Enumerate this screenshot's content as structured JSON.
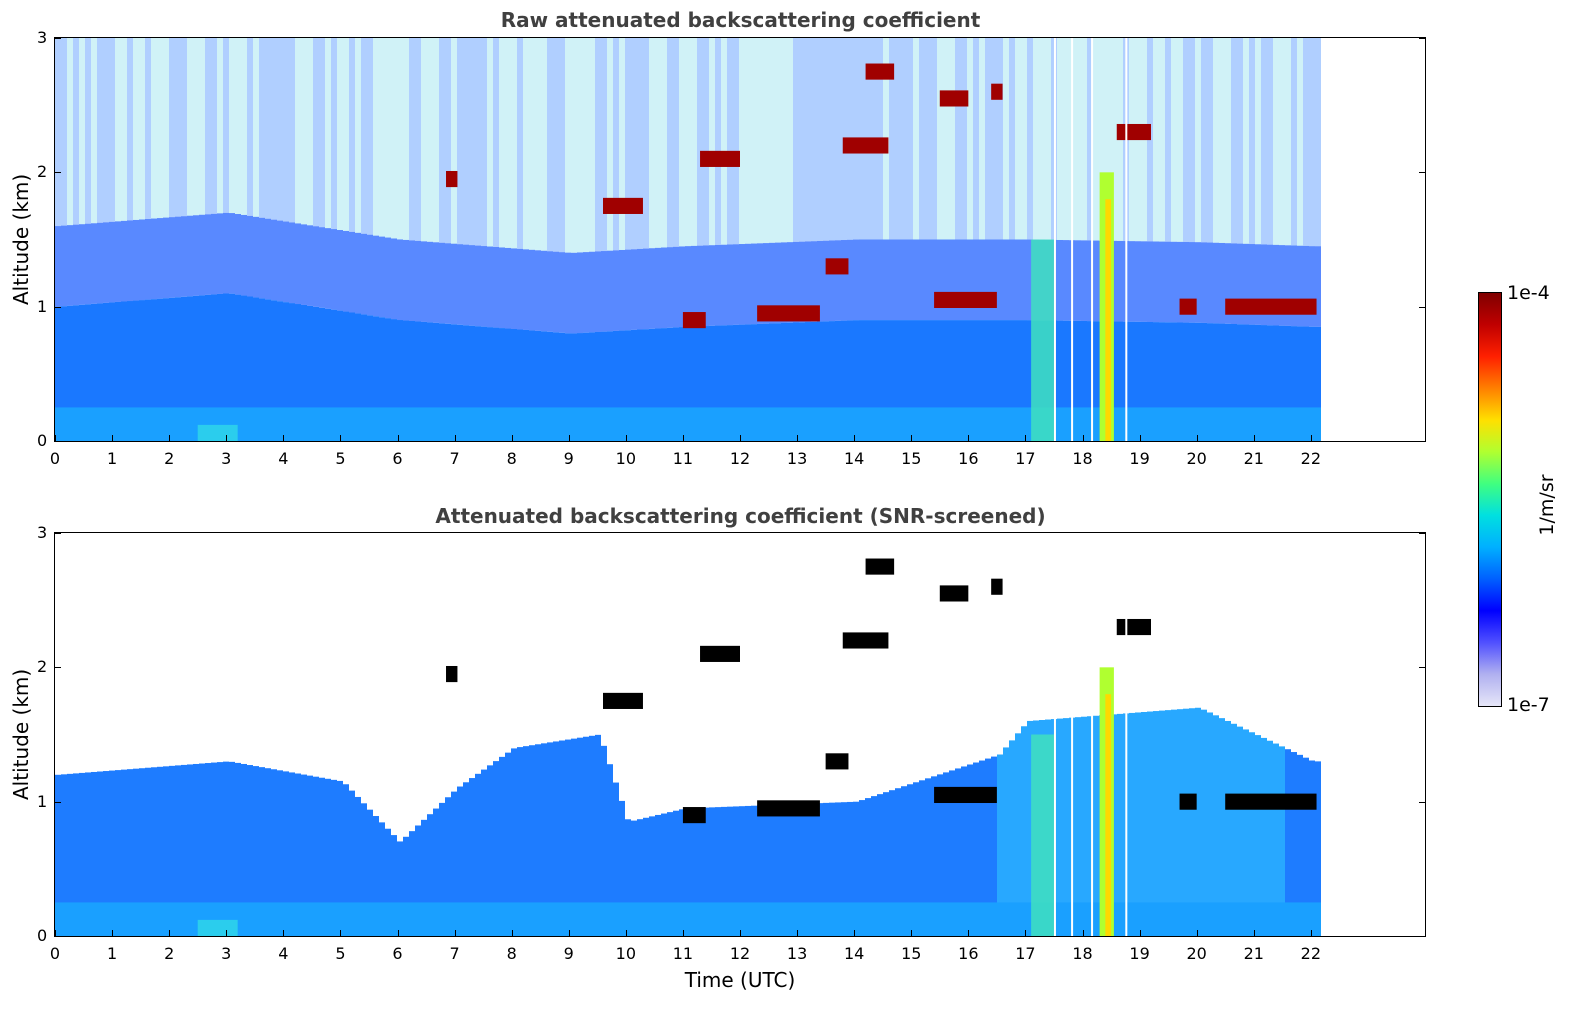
{
  "chart_data": [
    {
      "type": "heatmap",
      "title": "Raw attenuated backscattering coefficient",
      "xlabel": "",
      "ylabel": "Altitude (km)",
      "xlim": [
        0,
        24
      ],
      "ylim": [
        0,
        3
      ],
      "x_ticks": [
        "0",
        "1",
        "2",
        "3",
        "4",
        "5",
        "6",
        "7",
        "8",
        "9",
        "10",
        "11",
        "12",
        "13",
        "14",
        "15",
        "16",
        "17",
        "18",
        "19",
        "20",
        "21",
        "22"
      ],
      "y_ticks": [
        "0",
        "1",
        "2",
        "3"
      ],
      "data_end_time": 22.15,
      "mixed_layer_top_km": [
        [
          0,
          1.0
        ],
        [
          3,
          1.1
        ],
        [
          6,
          0.9
        ],
        [
          9,
          0.8
        ],
        [
          11,
          0.85
        ],
        [
          14,
          0.9
        ],
        [
          17,
          0.9
        ],
        [
          20,
          0.88
        ],
        [
          22,
          0.85
        ]
      ],
      "cloud_layers": [
        {
          "t_start": 11.0,
          "t_end": 11.4,
          "alt_km": 0.9
        },
        {
          "t_start": 12.3,
          "t_end": 13.4,
          "alt_km": 0.95
        },
        {
          "t_start": 15.4,
          "t_end": 16.5,
          "alt_km": 1.05
        },
        {
          "t_start": 19.7,
          "t_end": 20.0,
          "alt_km": 1.0
        },
        {
          "t_start": 20.5,
          "t_end": 22.1,
          "alt_km": 1.0
        },
        {
          "t_start": 9.6,
          "t_end": 10.3,
          "alt_km": 1.75
        },
        {
          "t_start": 6.85,
          "t_end": 7.05,
          "alt_km": 1.95
        },
        {
          "t_start": 14.2,
          "t_end": 14.7,
          "alt_km": 2.75
        },
        {
          "t_start": 13.8,
          "t_end": 14.6,
          "alt_km": 2.2
        },
        {
          "t_start": 16.4,
          "t_end": 16.6,
          "alt_km": 2.6
        },
        {
          "t_start": 15.5,
          "t_end": 16.0,
          "alt_km": 2.55
        },
        {
          "t_start": 11.3,
          "t_end": 12.0,
          "alt_km": 2.1
        },
        {
          "t_start": 18.6,
          "t_end": 19.2,
          "alt_km": 2.3
        },
        {
          "t_start": 13.5,
          "t_end": 13.9,
          "alt_km": 1.3
        }
      ],
      "data_gaps_utc": [
        17.5,
        17.8,
        18.15,
        18.75
      ]
    },
    {
      "type": "heatmap",
      "title": "Attenuated backscattering coefficient (SNR-screened)",
      "xlabel": "Time (UTC)",
      "ylabel": "Altitude (km)",
      "xlim": [
        0,
        24
      ],
      "ylim": [
        0,
        3
      ],
      "x_ticks": [
        "0",
        "1",
        "2",
        "3",
        "4",
        "5",
        "6",
        "7",
        "8",
        "9",
        "10",
        "11",
        "12",
        "13",
        "14",
        "15",
        "16",
        "17",
        "18",
        "19",
        "20",
        "21",
        "22"
      ],
      "y_ticks": [
        "0",
        "1",
        "2",
        "3"
      ],
      "data_end_time": 22.15,
      "screened_top_km": [
        [
          0,
          1.2
        ],
        [
          3,
          1.3
        ],
        [
          5,
          1.15
        ],
        [
          6,
          0.7
        ],
        [
          7,
          1.1
        ],
        [
          8,
          1.4
        ],
        [
          9.5,
          1.5
        ],
        [
          10,
          0.85
        ],
        [
          11,
          0.95
        ],
        [
          14,
          1.0
        ],
        [
          16.5,
          1.35
        ],
        [
          17,
          1.6
        ],
        [
          20,
          1.7
        ],
        [
          22,
          1.3
        ]
      ]
    }
  ],
  "colorbar": {
    "label": "1/m/sr",
    "max_label": "1e-4",
    "min_label": "1e-7",
    "colors": [
      "#e6e6f8",
      "#b0b0f0",
      "#5050ff",
      "#0000ff",
      "#0060ff",
      "#00b0ff",
      "#00e0e0",
      "#40ff80",
      "#b0ff30",
      "#ffe000",
      "#ff8000",
      "#ff2000",
      "#c00000",
      "#800000"
    ]
  }
}
